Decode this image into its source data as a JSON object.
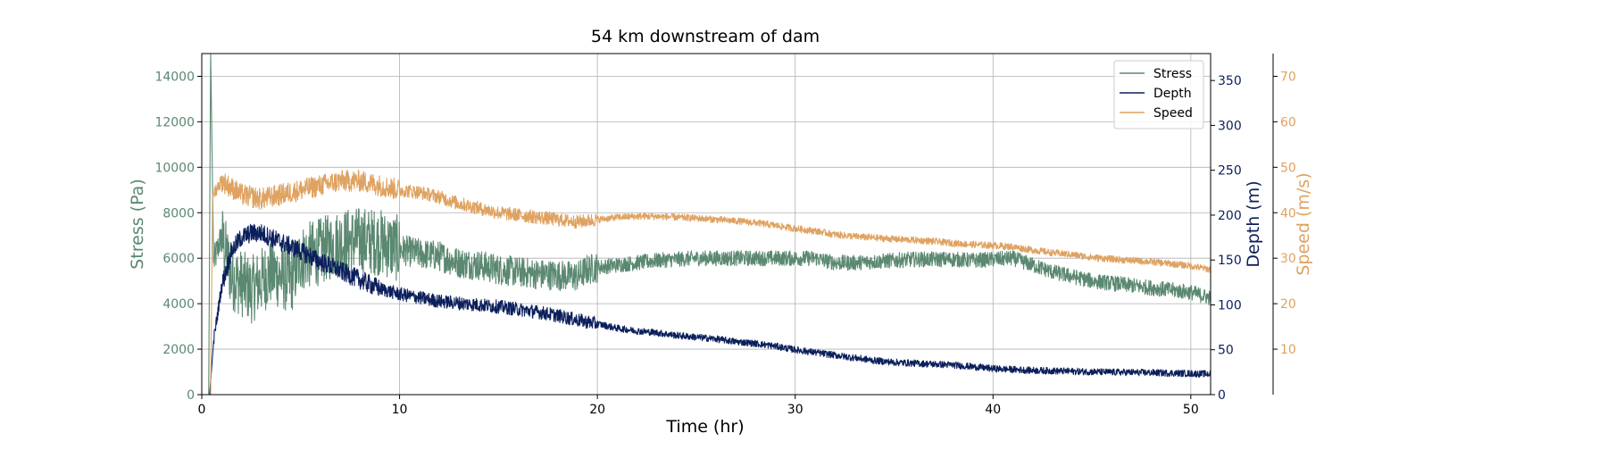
{
  "chart_data": {
    "type": "line",
    "title": "54 km downstream of dam",
    "xlabel": "Time (hr)",
    "xlim": [
      0,
      51
    ],
    "xticks": [
      0,
      10,
      20,
      30,
      40,
      50
    ],
    "grid": true,
    "legend_position": "top-right",
    "axes": [
      {
        "id": "stress",
        "label": "Stress (Pa)",
        "side": "left",
        "color": "#5a8870",
        "ylim": [
          0,
          15000
        ],
        "ticks": [
          0,
          2000,
          4000,
          6000,
          8000,
          10000,
          12000,
          14000
        ]
      },
      {
        "id": "depth",
        "label": "Depth (m)",
        "side": "right",
        "color": "#0b1f5c",
        "ylim": [
          0,
          380
        ],
        "ticks": [
          0,
          50,
          100,
          150,
          200,
          250,
          300,
          350
        ]
      },
      {
        "id": "speed",
        "label": "Speed (m/s)",
        "side": "right-offset",
        "color": "#dfa261",
        "ylim": [
          0,
          75
        ],
        "ticks": [
          10,
          20,
          30,
          40,
          50,
          60,
          70
        ]
      }
    ],
    "series": [
      {
        "name": "Stress",
        "axis": "stress",
        "color": "#5a8870",
        "noise_scale": 0.09,
        "points": [
          [
            0.35,
            0
          ],
          [
            0.45,
            15000
          ],
          [
            0.6,
            5800
          ],
          [
            1.0,
            7000
          ],
          [
            1.5,
            5200
          ],
          [
            2.5,
            4600
          ],
          [
            3.5,
            5400
          ],
          [
            4.5,
            5000
          ],
          [
            5,
            6000
          ],
          [
            6,
            6300
          ],
          [
            7,
            6700
          ],
          [
            8,
            6800
          ],
          [
            9,
            6700
          ],
          [
            10,
            6400
          ],
          [
            11,
            6200
          ],
          [
            12,
            6100
          ],
          [
            13,
            5800
          ],
          [
            14,
            5700
          ],
          [
            15,
            5500
          ],
          [
            16,
            5400
          ],
          [
            17,
            5300
          ],
          [
            18,
            5250
          ],
          [
            19,
            5200
          ],
          [
            19.5,
            5500
          ],
          [
            20,
            5600
          ],
          [
            21,
            5700
          ],
          [
            22,
            5800
          ],
          [
            23,
            5900
          ],
          [
            24,
            5950
          ],
          [
            25,
            6000
          ],
          [
            26,
            6000
          ],
          [
            27,
            6000
          ],
          [
            28,
            6000
          ],
          [
            29,
            6000
          ],
          [
            30,
            6000
          ],
          [
            31,
            6000
          ],
          [
            32,
            5800
          ],
          [
            33,
            5800
          ],
          [
            34,
            5850
          ],
          [
            35,
            5900
          ],
          [
            36,
            5950
          ],
          [
            37,
            5950
          ],
          [
            38,
            5950
          ],
          [
            39,
            5900
          ],
          [
            40,
            5950
          ],
          [
            41,
            6000
          ],
          [
            42,
            5700
          ],
          [
            43,
            5400
          ],
          [
            44,
            5200
          ],
          [
            45,
            5000
          ],
          [
            46,
            4900
          ],
          [
            47,
            4800
          ],
          [
            48,
            4700
          ],
          [
            49,
            4600
          ],
          [
            50,
            4500
          ],
          [
            51,
            4250
          ]
        ]
      },
      {
        "name": "Depth",
        "axis": "depth",
        "color": "#0b1f5c",
        "noise_scale": 0.04,
        "points": [
          [
            0.4,
            0
          ],
          [
            0.6,
            60
          ],
          [
            1,
            120
          ],
          [
            1.5,
            160
          ],
          [
            2,
            175
          ],
          [
            2.5,
            180
          ],
          [
            3,
            180
          ],
          [
            4,
            170
          ],
          [
            5,
            160
          ],
          [
            6,
            148
          ],
          [
            7,
            138
          ],
          [
            8,
            128
          ],
          [
            9,
            118
          ],
          [
            10,
            112
          ],
          [
            11,
            108
          ],
          [
            12,
            104
          ],
          [
            13,
            102
          ],
          [
            14,
            100
          ],
          [
            15,
            98
          ],
          [
            16,
            95
          ],
          [
            17,
            92
          ],
          [
            18,
            88
          ],
          [
            19,
            83
          ],
          [
            20,
            79
          ],
          [
            21,
            74
          ],
          [
            22,
            71
          ],
          [
            23,
            69
          ],
          [
            24,
            66
          ],
          [
            25,
            64
          ],
          [
            26,
            62
          ],
          [
            27,
            59
          ],
          [
            28,
            57
          ],
          [
            29,
            54
          ],
          [
            30,
            50
          ],
          [
            31,
            47
          ],
          [
            32,
            44
          ],
          [
            33,
            41
          ],
          [
            34,
            38
          ],
          [
            35,
            36
          ],
          [
            36,
            35
          ],
          [
            37,
            34
          ],
          [
            38,
            33
          ],
          [
            39,
            31
          ],
          [
            40,
            29
          ],
          [
            41,
            28
          ],
          [
            42,
            27
          ],
          [
            43,
            26.5
          ],
          [
            44,
            26
          ],
          [
            45,
            25.5
          ],
          [
            46,
            25
          ],
          [
            47,
            24.8
          ],
          [
            48,
            24.5
          ],
          [
            49,
            24
          ],
          [
            50,
            23.5
          ],
          [
            51,
            23
          ]
        ]
      },
      {
        "name": "Speed",
        "axis": "speed",
        "color": "#dfa261",
        "noise_scale": 0.04,
        "points": [
          [
            0.45,
            0
          ],
          [
            0.55,
            44
          ],
          [
            1,
            47
          ],
          [
            2,
            44
          ],
          [
            3,
            43
          ],
          [
            4,
            44
          ],
          [
            5,
            45
          ],
          [
            6,
            46
          ],
          [
            7,
            47
          ],
          [
            8,
            47
          ],
          [
            9,
            46
          ],
          [
            10,
            45
          ],
          [
            11,
            44.5
          ],
          [
            12,
            43.5
          ],
          [
            13,
            42
          ],
          [
            14,
            41
          ],
          [
            15,
            40
          ],
          [
            16,
            39.5
          ],
          [
            17,
            39
          ],
          [
            18,
            38.5
          ],
          [
            19,
            38
          ],
          [
            20,
            38.5
          ],
          [
            21,
            39
          ],
          [
            22,
            39.2
          ],
          [
            23,
            39.2
          ],
          [
            24,
            39
          ],
          [
            25,
            38.8
          ],
          [
            26,
            38.5
          ],
          [
            27,
            38.2
          ],
          [
            28,
            37.8
          ],
          [
            29,
            37.2
          ],
          [
            30,
            36.5
          ],
          [
            31,
            36
          ],
          [
            32,
            35.2
          ],
          [
            33,
            34.8
          ],
          [
            34,
            34.5
          ],
          [
            35,
            34.2
          ],
          [
            36,
            34
          ],
          [
            37,
            33.7
          ],
          [
            38,
            33.3
          ],
          [
            39,
            33
          ],
          [
            40,
            32.8
          ],
          [
            41,
            32.5
          ],
          [
            42,
            31.8
          ],
          [
            43,
            31.2
          ],
          [
            44,
            30.8
          ],
          [
            45,
            30.2
          ],
          [
            46,
            29.8
          ],
          [
            47,
            29.5
          ],
          [
            48,
            29.2
          ],
          [
            49,
            28.8
          ],
          [
            50,
            28.3
          ],
          [
            51,
            27.5
          ]
        ]
      }
    ]
  }
}
